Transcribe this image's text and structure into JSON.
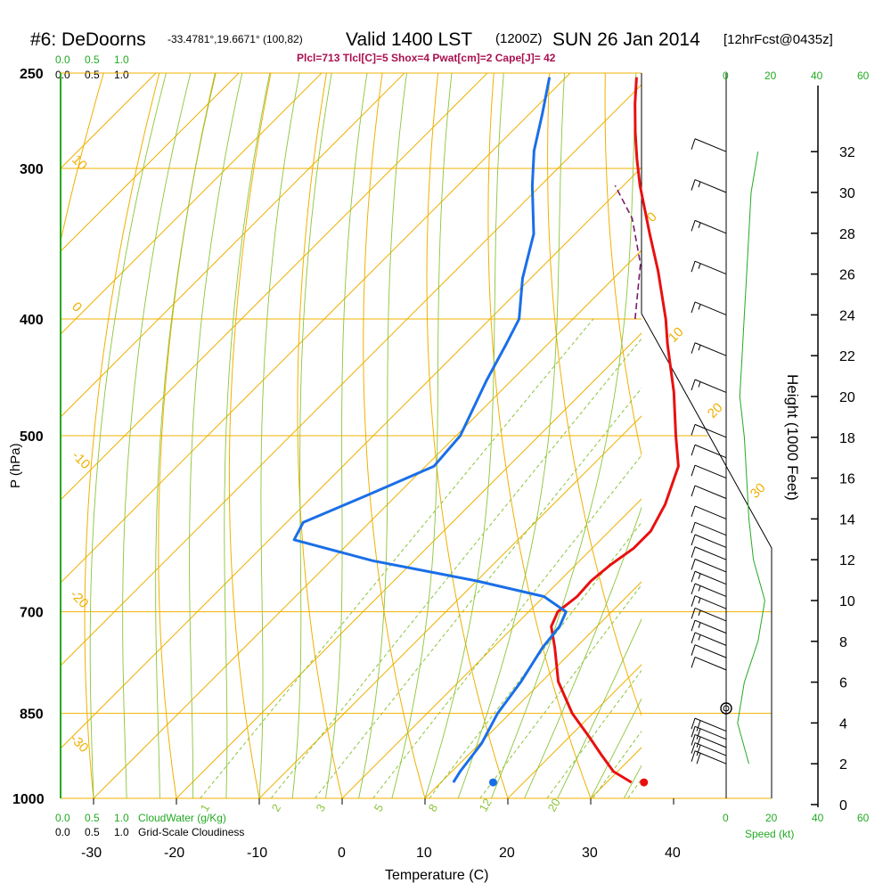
{
  "header": {
    "station": "#6: DeDoorns",
    "coords": "-33.4781°,19.6671° (100,82)",
    "valid": "Valid 1400 LST",
    "utc": "(1200Z)",
    "date": "SUN 26 Jan 2014",
    "forecast": "[12hrFcst@0435z]",
    "indices": "Plcl=713 Tlcl[C]=5 Shox=4 Pwat[cm]=2 Cape[J]= 42"
  },
  "colors": {
    "temperature": "#e81010",
    "dewpoint": "#1a6fe8",
    "parcel": "#7a1a6a",
    "isotherm": "#f0b000",
    "dry_adiabat": "#f0b000",
    "moist_adiabat": "#8cc43a",
    "mixing_ratio": "#8cc43a",
    "cloud": "#22aa22",
    "title_indices": "#aa1050"
  },
  "labels": {
    "cloud_top_ticks": [
      "0.0",
      "0.5",
      "1.0"
    ],
    "cloudiness_top_ticks": [
      "0.0",
      "0.5",
      "1.0"
    ],
    "cloud_bottom_ticks": [
      "0.0",
      "0.5",
      "1.0"
    ],
    "cloud_bottom_label": "CloudWater (g/Kg)",
    "cloudiness_bottom_ticks": [
      "0.0",
      "0.5",
      "1.0"
    ],
    "cloudiness_bottom_label": "Grid-Scale Cloudiness",
    "speed_top_ticks": [
      "0",
      "20",
      "40",
      "60"
    ],
    "speed_bottom_ticks": [
      "0",
      "20",
      "40",
      "60"
    ],
    "speed_label": "Speed (kt)"
  },
  "chart_data": {
    "type": "skew-t",
    "title": "#6: DeDoorns -33.4781°,19.6671° (100,82) Valid 1400 LST (1200Z) SUN 26 Jan 2014 [12hrFcst@0435z]",
    "xlabel": "Temperature (C)",
    "ylabel": "P (hPa)",
    "y2label": "Height (1000 Feet)",
    "x_ticks": [
      -30,
      -20,
      -10,
      0,
      10,
      20,
      30,
      40
    ],
    "x_range": [
      -35,
      45
    ],
    "p_ticks": [
      250,
      300,
      400,
      500,
      700,
      850,
      1000
    ],
    "p_range": [
      250,
      1000
    ],
    "height_ticks": [
      0,
      2,
      4,
      6,
      8,
      10,
      12,
      14,
      16,
      18,
      20,
      22,
      24,
      26,
      28,
      30,
      32
    ],
    "isotherm_labels": [
      "30",
      "20",
      "10",
      "0",
      "-10",
      "-20",
      "-30"
    ],
    "adiabat_labels": [
      "10",
      "0",
      "-10",
      "-20",
      "-30"
    ],
    "adiabat_right_labels": [
      "0",
      "10",
      "20",
      "30"
    ],
    "mixing_ratio_labels": [
      "1",
      "2",
      "3",
      "5",
      "8",
      "12",
      "20"
    ],
    "series": [
      {
        "name": "Temperature",
        "points": [
          [
            33.0,
            970
          ],
          [
            29.5,
            950
          ],
          [
            26.0,
            920
          ],
          [
            22.5,
            890
          ],
          [
            17.5,
            850
          ],
          [
            12.0,
            800
          ],
          [
            7.5,
            750
          ],
          [
            4.5,
            720
          ],
          [
            3.5,
            700
          ],
          [
            4.0,
            680
          ],
          [
            3.8,
            660
          ],
          [
            4.2,
            640
          ],
          [
            5.0,
            620
          ],
          [
            5.0,
            600
          ],
          [
            3.5,
            570
          ],
          [
            0.5,
            530
          ],
          [
            -3.5,
            500
          ],
          [
            -9.0,
            460
          ],
          [
            -15.5,
            420
          ],
          [
            -18.8,
            400
          ],
          [
            -25.5,
            365
          ],
          [
            -31.0,
            340
          ],
          [
            -38.0,
            310
          ],
          [
            -41.5,
            295
          ],
          [
            -45.0,
            280
          ],
          [
            -48.5,
            265
          ],
          [
            -51.5,
            252
          ]
        ]
      },
      {
        "name": "Dewpoint",
        "points": [
          [
            11.5,
            970
          ],
          [
            11.0,
            950
          ],
          [
            10.2,
            900
          ],
          [
            8.5,
            850
          ],
          [
            7.5,
            800
          ],
          [
            6.0,
            750
          ],
          [
            5.5,
            720
          ],
          [
            4.5,
            700
          ],
          [
            0.0,
            680
          ],
          [
            -10.0,
            660
          ],
          [
            -25.0,
            635
          ],
          [
            -37.0,
            610
          ],
          [
            -38.0,
            590
          ],
          [
            -33.5,
            560
          ],
          [
            -29.0,
            530
          ],
          [
            -29.5,
            500
          ],
          [
            -33.0,
            450
          ],
          [
            -35.0,
            420
          ],
          [
            -36.5,
            400
          ],
          [
            -41.0,
            370
          ],
          [
            -45.0,
            340
          ],
          [
            -51.0,
            310
          ],
          [
            -55.0,
            290
          ],
          [
            -58.5,
            270
          ],
          [
            -62.0,
            252
          ]
        ]
      },
      {
        "name": "Parcel",
        "points": [
          [
            -22.5,
            400
          ],
          [
            -28.5,
            360
          ],
          [
            -35.0,
            330
          ],
          [
            -41.0,
            310
          ]
        ]
      }
    ],
    "surface_markers": [
      {
        "name": "surface-temperature",
        "t": 34.5,
        "p": 970
      },
      {
        "name": "surface-dewpoint",
        "t": 16.3,
        "p": 970
      }
    ],
    "wind_profile": {
      "note": "wind speed (kt) profile by height (kft)",
      "speed": [
        [
          2,
          10
        ],
        [
          4,
          5
        ],
        [
          6,
          8
        ],
        [
          8,
          14
        ],
        [
          10,
          17
        ],
        [
          12,
          12
        ],
        [
          14,
          10
        ],
        [
          16,
          9
        ],
        [
          18,
          8
        ],
        [
          20,
          6
        ],
        [
          22,
          7
        ],
        [
          24,
          8
        ],
        [
          26,
          9
        ],
        [
          28,
          10
        ],
        [
          30,
          11
        ],
        [
          32,
          14
        ]
      ]
    },
    "wind_barbs": [
      {
        "h": 2.0,
        "kt": 20
      },
      {
        "h": 2.4,
        "kt": 20
      },
      {
        "h": 2.8,
        "kt": 20
      },
      {
        "h": 3.2,
        "kt": 20
      },
      {
        "h": 3.6,
        "kt": 20
      },
      {
        "h": 5.2,
        "kt": 0
      },
      {
        "h": 6.6,
        "kt": 10
      },
      {
        "h": 7.2,
        "kt": 10
      },
      {
        "h": 7.8,
        "kt": 15
      },
      {
        "h": 8.4,
        "kt": 15
      },
      {
        "h": 9.0,
        "kt": 15
      },
      {
        "h": 9.6,
        "kt": 15
      },
      {
        "h": 10.2,
        "kt": 15
      },
      {
        "h": 10.8,
        "kt": 15
      },
      {
        "h": 11.4,
        "kt": 10
      },
      {
        "h": 12.0,
        "kt": 10
      },
      {
        "h": 12.6,
        "kt": 10
      },
      {
        "h": 13.2,
        "kt": 10
      },
      {
        "h": 14.0,
        "kt": 10
      },
      {
        "h": 15.0,
        "kt": 10
      },
      {
        "h": 16.0,
        "kt": 10
      },
      {
        "h": 17.0,
        "kt": 10
      },
      {
        "h": 18.0,
        "kt": 10
      },
      {
        "h": 20.2,
        "kt": 15
      },
      {
        "h": 22.0,
        "kt": 15
      },
      {
        "h": 24.0,
        "kt": 15
      },
      {
        "h": 26.0,
        "kt": 15
      },
      {
        "h": 28.0,
        "kt": 15
      },
      {
        "h": 30.0,
        "kt": 15
      },
      {
        "h": 32.0,
        "kt": 10
      }
    ]
  }
}
